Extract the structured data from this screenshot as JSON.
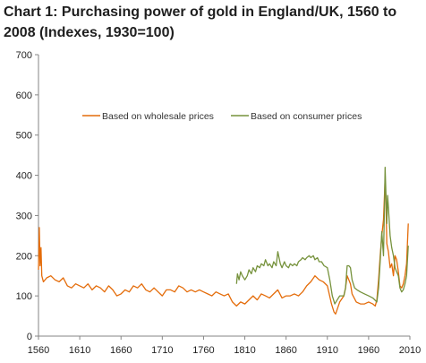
{
  "chart_data": {
    "type": "line",
    "title_line1": "Chart 1: Purchasing power of gold in England/UK, 1560 to",
    "title_line2": "2008 (Indexes, 1930=100)",
    "xlabel": "",
    "ylabel": "",
    "xlim": [
      1560,
      2010
    ],
    "ylim": [
      0,
      700
    ],
    "x_ticks": [
      1560,
      1610,
      1660,
      1710,
      1760,
      1810,
      1860,
      1910,
      1960,
      2010
    ],
    "y_ticks": [
      0,
      100,
      200,
      300,
      400,
      500,
      600,
      700
    ],
    "grid": false,
    "legend_position": "upper-middle",
    "series": [
      {
        "name": "Based on wholesale prices",
        "color": "#E46C0A",
        "points": [
          [
            1560,
            165
          ],
          [
            1561,
            270
          ],
          [
            1562,
            175
          ],
          [
            1563,
            220
          ],
          [
            1564,
            150
          ],
          [
            1566,
            135
          ],
          [
            1570,
            145
          ],
          [
            1575,
            150
          ],
          [
            1580,
            140
          ],
          [
            1585,
            135
          ],
          [
            1590,
            145
          ],
          [
            1595,
            125
          ],
          [
            1600,
            120
          ],
          [
            1605,
            130
          ],
          [
            1610,
            125
          ],
          [
            1615,
            120
          ],
          [
            1620,
            130
          ],
          [
            1625,
            115
          ],
          [
            1630,
            125
          ],
          [
            1635,
            120
          ],
          [
            1640,
            110
          ],
          [
            1645,
            125
          ],
          [
            1650,
            115
          ],
          [
            1655,
            100
          ],
          [
            1660,
            105
          ],
          [
            1665,
            115
          ],
          [
            1670,
            110
          ],
          [
            1675,
            125
          ],
          [
            1680,
            120
          ],
          [
            1685,
            130
          ],
          [
            1690,
            115
          ],
          [
            1695,
            110
          ],
          [
            1700,
            120
          ],
          [
            1705,
            110
          ],
          [
            1710,
            100
          ],
          [
            1715,
            115
          ],
          [
            1720,
            115
          ],
          [
            1725,
            110
          ],
          [
            1730,
            125
          ],
          [
            1735,
            120
          ],
          [
            1740,
            110
          ],
          [
            1745,
            115
          ],
          [
            1750,
            110
          ],
          [
            1755,
            115
          ],
          [
            1760,
            110
          ],
          [
            1765,
            105
          ],
          [
            1770,
            100
          ],
          [
            1775,
            110
          ],
          [
            1780,
            105
          ],
          [
            1785,
            100
          ],
          [
            1790,
            105
          ],
          [
            1795,
            85
          ],
          [
            1800,
            75
          ],
          [
            1805,
            85
          ],
          [
            1810,
            80
          ],
          [
            1815,
            90
          ],
          [
            1820,
            100
          ],
          [
            1825,
            90
          ],
          [
            1830,
            105
          ],
          [
            1835,
            100
          ],
          [
            1840,
            95
          ],
          [
            1845,
            105
          ],
          [
            1850,
            115
          ],
          [
            1855,
            95
          ],
          [
            1860,
            100
          ],
          [
            1865,
            100
          ],
          [
            1870,
            105
          ],
          [
            1875,
            100
          ],
          [
            1880,
            110
          ],
          [
            1885,
            125
          ],
          [
            1890,
            135
          ],
          [
            1895,
            150
          ],
          [
            1900,
            140
          ],
          [
            1905,
            135
          ],
          [
            1910,
            125
          ],
          [
            1915,
            80
          ],
          [
            1918,
            60
          ],
          [
            1920,
            55
          ],
          [
            1925,
            85
          ],
          [
            1930,
            100
          ],
          [
            1932,
            120
          ],
          [
            1934,
            150
          ],
          [
            1936,
            140
          ],
          [
            1938,
            130
          ],
          [
            1940,
            105
          ],
          [
            1945,
            85
          ],
          [
            1950,
            80
          ],
          [
            1955,
            80
          ],
          [
            1960,
            85
          ],
          [
            1965,
            80
          ],
          [
            1968,
            75
          ],
          [
            1970,
            90
          ],
          [
            1972,
            140
          ],
          [
            1974,
            200
          ],
          [
            1976,
            250
          ],
          [
            1978,
            290
          ],
          [
            1980,
            390
          ],
          [
            1981,
            330
          ],
          [
            1982,
            230
          ],
          [
            1984,
            210
          ],
          [
            1986,
            170
          ],
          [
            1988,
            180
          ],
          [
            1990,
            150
          ],
          [
            1992,
            200
          ],
          [
            1994,
            190
          ],
          [
            1996,
            160
          ],
          [
            1998,
            125
          ],
          [
            2000,
            120
          ],
          [
            2002,
            130
          ],
          [
            2004,
            150
          ],
          [
            2006,
            180
          ],
          [
            2008,
            280
          ]
        ]
      },
      {
        "name": "Based on consumer prices",
        "color": "#76923C",
        "points": [
          [
            1800,
            130
          ],
          [
            1801,
            155
          ],
          [
            1803,
            140
          ],
          [
            1805,
            160
          ],
          [
            1807,
            150
          ],
          [
            1810,
            140
          ],
          [
            1813,
            150
          ],
          [
            1815,
            165
          ],
          [
            1818,
            155
          ],
          [
            1820,
            170
          ],
          [
            1823,
            160
          ],
          [
            1825,
            175
          ],
          [
            1828,
            170
          ],
          [
            1830,
            180
          ],
          [
            1833,
            175
          ],
          [
            1835,
            190
          ],
          [
            1838,
            175
          ],
          [
            1840,
            180
          ],
          [
            1843,
            170
          ],
          [
            1845,
            185
          ],
          [
            1848,
            175
          ],
          [
            1850,
            210
          ],
          [
            1853,
            180
          ],
          [
            1855,
            170
          ],
          [
            1858,
            185
          ],
          [
            1860,
            175
          ],
          [
            1863,
            170
          ],
          [
            1865,
            180
          ],
          [
            1868,
            175
          ],
          [
            1870,
            180
          ],
          [
            1873,
            175
          ],
          [
            1875,
            185
          ],
          [
            1878,
            190
          ],
          [
            1880,
            195
          ],
          [
            1883,
            190
          ],
          [
            1885,
            195
          ],
          [
            1888,
            200
          ],
          [
            1890,
            195
          ],
          [
            1893,
            200
          ],
          [
            1895,
            190
          ],
          [
            1898,
            195
          ],
          [
            1900,
            185
          ],
          [
            1903,
            185
          ],
          [
            1906,
            175
          ],
          [
            1910,
            170
          ],
          [
            1913,
            140
          ],
          [
            1916,
            100
          ],
          [
            1919,
            80
          ],
          [
            1922,
            90
          ],
          [
            1925,
            100
          ],
          [
            1928,
            100
          ],
          [
            1930,
            100
          ],
          [
            1932,
            120
          ],
          [
            1934,
            175
          ],
          [
            1936,
            175
          ],
          [
            1938,
            170
          ],
          [
            1940,
            140
          ],
          [
            1943,
            120
          ],
          [
            1946,
            115
          ],
          [
            1950,
            110
          ],
          [
            1955,
            105
          ],
          [
            1960,
            100
          ],
          [
            1965,
            95
          ],
          [
            1970,
            85
          ],
          [
            1972,
            120
          ],
          [
            1974,
            185
          ],
          [
            1976,
            260
          ],
          [
            1978,
            200
          ],
          [
            1979,
            300
          ],
          [
            1980,
            420
          ],
          [
            1981,
            350
          ],
          [
            1982,
            280
          ],
          [
            1983,
            350
          ],
          [
            1984,
            320
          ],
          [
            1986,
            250
          ],
          [
            1988,
            220
          ],
          [
            1990,
            200
          ],
          [
            1992,
            170
          ],
          [
            1994,
            160
          ],
          [
            1996,
            150
          ],
          [
            1998,
            120
          ],
          [
            2000,
            110
          ],
          [
            2002,
            115
          ],
          [
            2004,
            130
          ],
          [
            2006,
            150
          ],
          [
            2008,
            225
          ]
        ]
      }
    ]
  }
}
